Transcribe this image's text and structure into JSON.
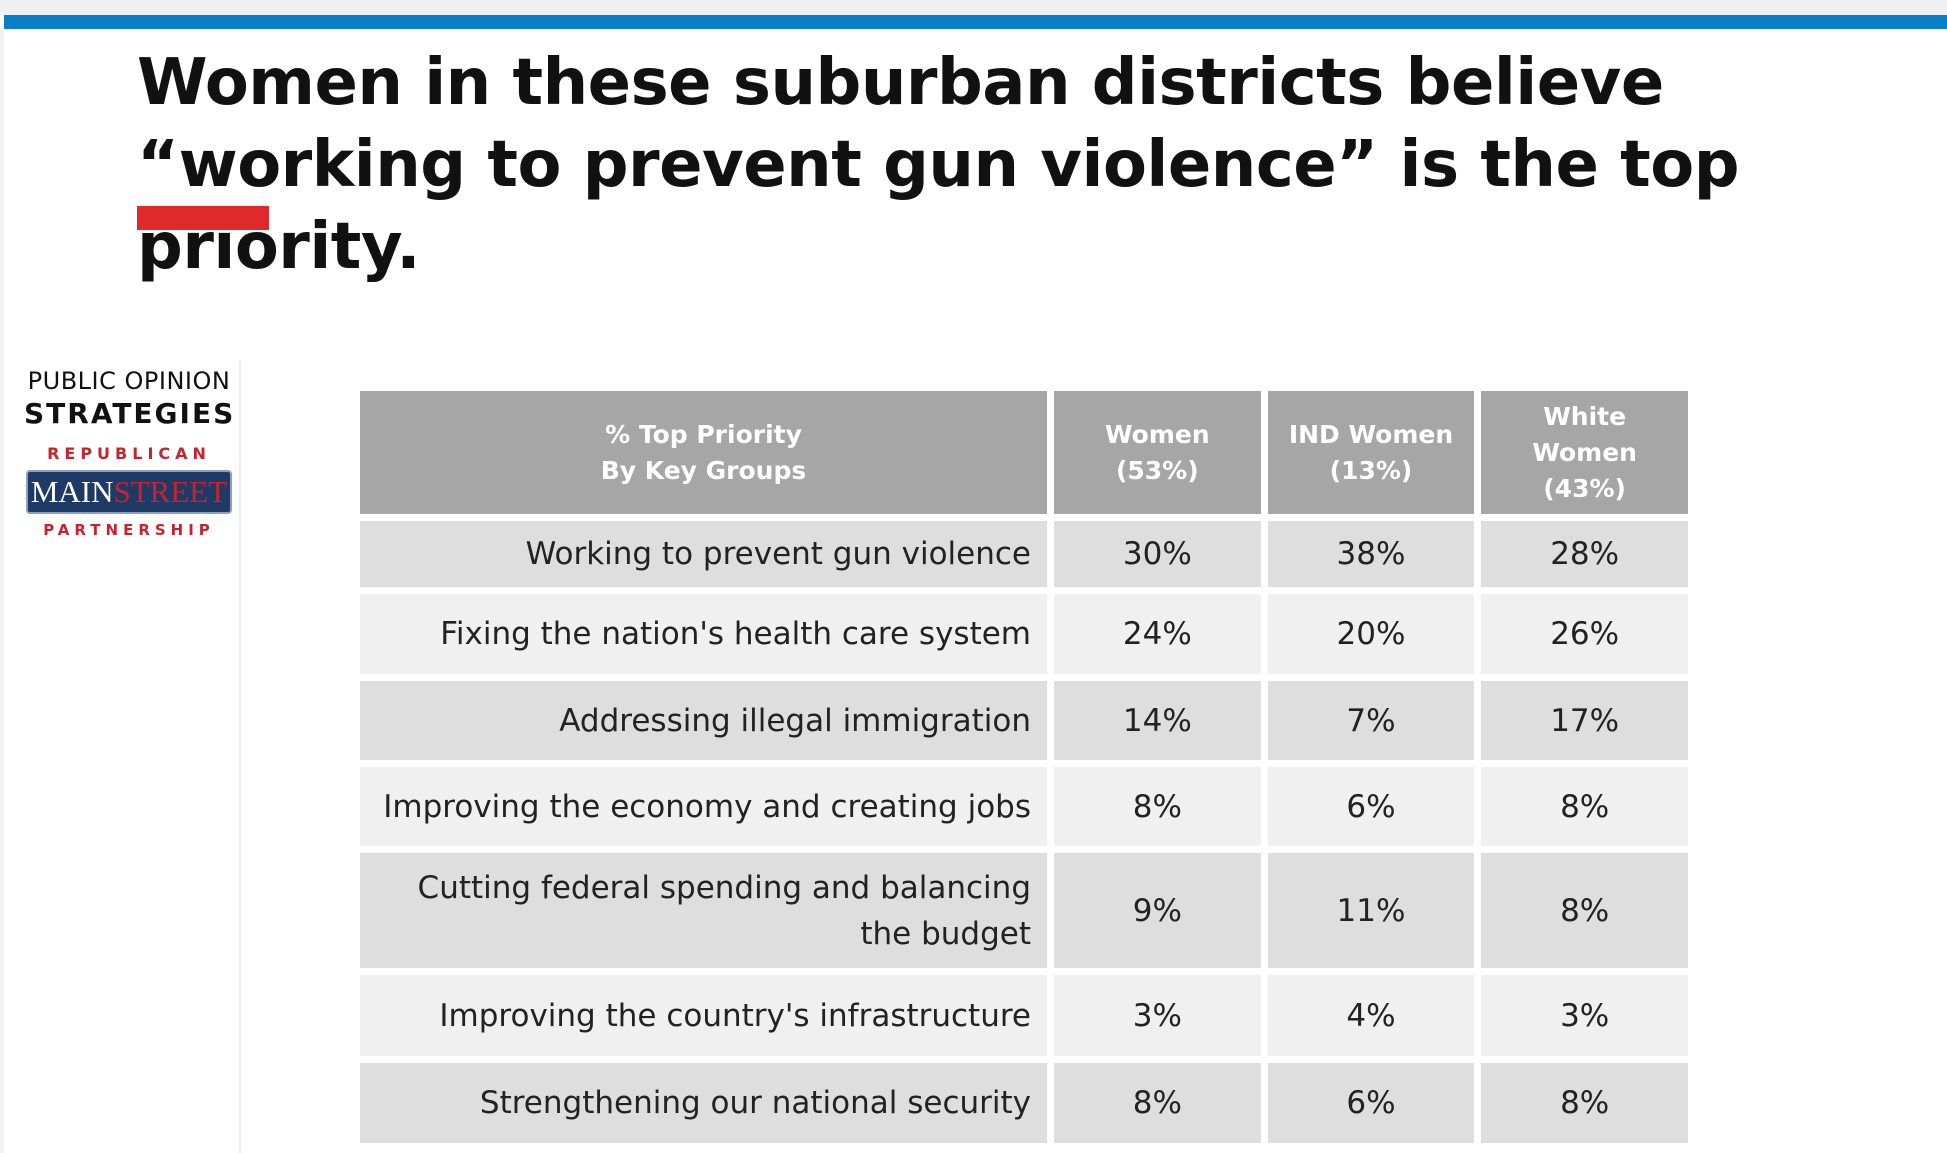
{
  "page": {
    "title": "Women in these suburban districts believe “working to prevent gun violence” is the top priority.",
    "accent_colors": {
      "top_bar": "#0a7fc7",
      "title_underline": "#e0292b",
      "header_fill": "#a6a6a6",
      "row_dark": "#dedede",
      "row_light": "#f0f0f0"
    }
  },
  "logo": {
    "line1": "PUBLIC OPINION",
    "line2": "STRATEGIES",
    "line3": "REPUBLICAN",
    "box_main": "MAIN",
    "box_street": "STREET",
    "line4": "PARTNERSHIP"
  },
  "chart_data": {
    "type": "table",
    "header": {
      "label_line1": "% Top Priority",
      "label_line2": "By Key Groups",
      "columns": [
        {
          "line1": "Women",
          "line2": "(53%)",
          "line3": ""
        },
        {
          "line1": "IND Women",
          "line2": "(13%)",
          "line3": ""
        },
        {
          "line1": "White",
          "line2": "Women",
          "line3": "(43%)"
        }
      ]
    },
    "rows": [
      {
        "label": "Working to prevent gun violence",
        "values": [
          "30%",
          "38%",
          "28%"
        ]
      },
      {
        "label": "Fixing the nation's health care system",
        "values": [
          "24%",
          "20%",
          "26%"
        ]
      },
      {
        "label": "Addressing illegal immigration",
        "values": [
          "14%",
          "7%",
          "17%"
        ]
      },
      {
        "label": "Improving the economy and creating jobs",
        "values": [
          "8%",
          "6%",
          "8%"
        ]
      },
      {
        "label": "Cutting federal spending and balancing the budget",
        "values": [
          "9%",
          "11%",
          "8%"
        ]
      },
      {
        "label": "Improving the country's infrastructure",
        "values": [
          "3%",
          "4%",
          "3%"
        ]
      },
      {
        "label": "Strengthening our national security",
        "values": [
          "8%",
          "6%",
          "8%"
        ]
      }
    ]
  }
}
